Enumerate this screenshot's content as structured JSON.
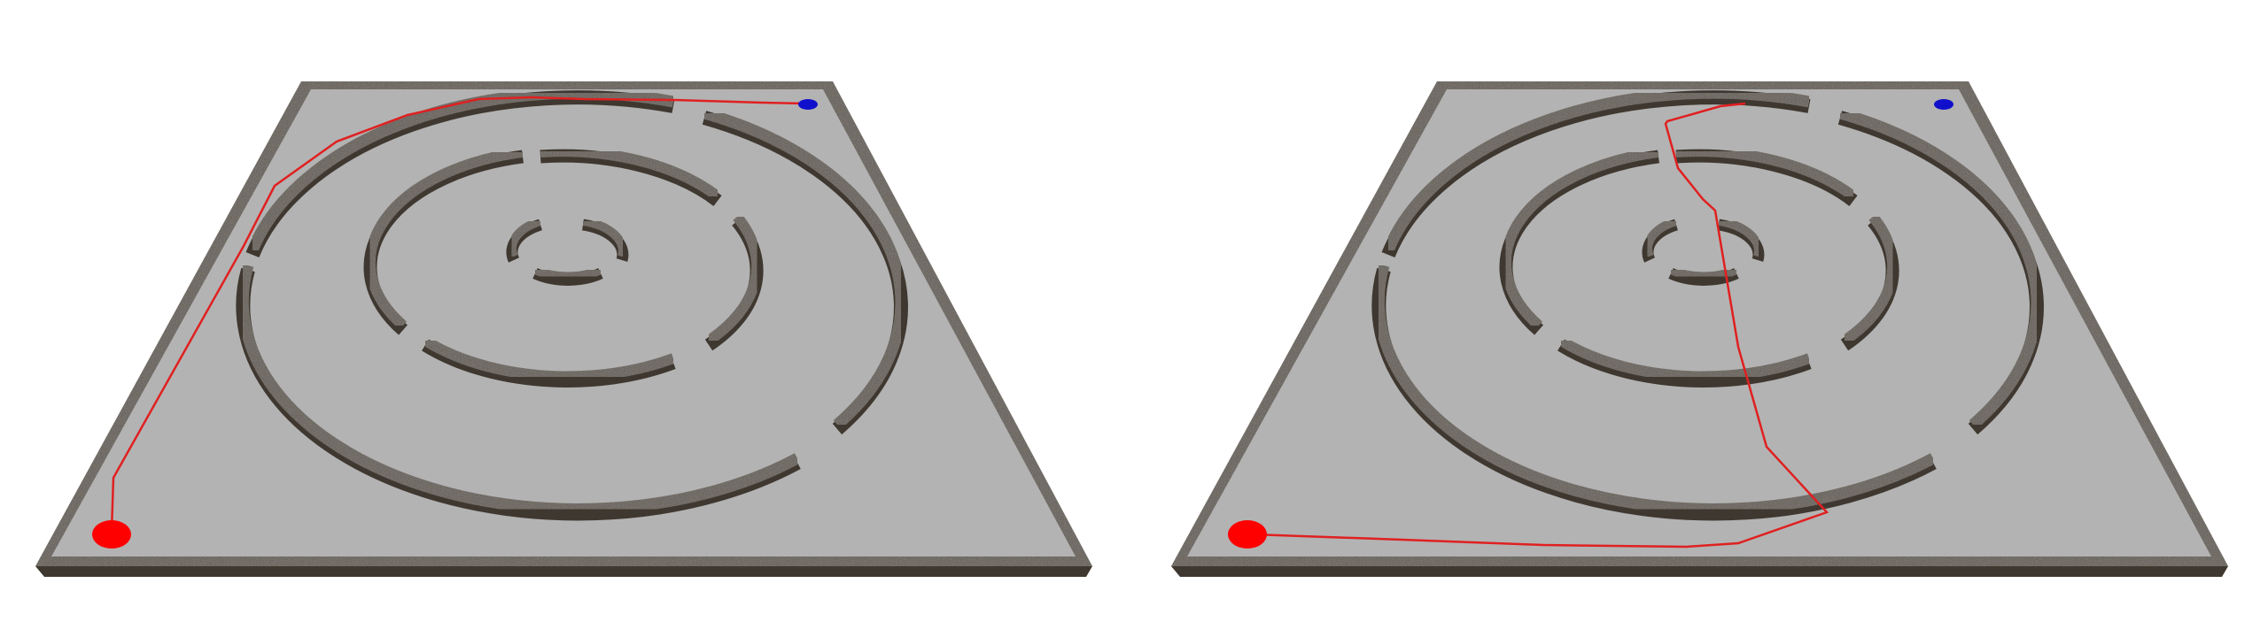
{
  "panels": [
    {
      "id": "left",
      "start_marker": {
        "color": "#ff0000",
        "shape": "ellipse"
      },
      "goal_marker": {
        "color": "#1010cc",
        "shape": "ellipse"
      },
      "path": {
        "color": "#e02020",
        "description_visible": false
      }
    },
    {
      "id": "right",
      "start_marker": {
        "color": "#ff0000",
        "shape": "ellipse"
      },
      "goal_marker": {
        "color": "#1010cc",
        "shape": "ellipse"
      },
      "path": {
        "color": "#e02020",
        "description_visible": false
      }
    }
  ],
  "colors": {
    "floor": "#b3b3b3",
    "wall_top": "#5a5146",
    "wall_side": "#3f3830",
    "background": "#ffffff"
  }
}
